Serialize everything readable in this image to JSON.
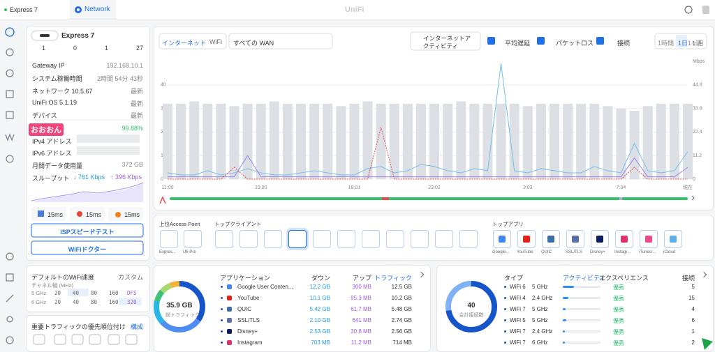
{
  "top_bar": {
    "device_tab": "Express 7",
    "network_tab": "Network",
    "logo": "UniFi"
  },
  "device": {
    "name": "Express 7",
    "counts": [
      1,
      0,
      1,
      27
    ],
    "rows": [
      [
        "Gateway IP",
        "192.168.10.1"
      ],
      [
        "システム稼働時間",
        "2時間 54分 43秒"
      ],
      [
        "ネットワーク 10.5.67",
        "最新"
      ],
      [
        "UniFi OS 5.1.19",
        "最新"
      ],
      [
        "デバイス",
        "最新"
      ]
    ],
    "isp_name": "おおおん",
    "isp_uptime": "99.88%",
    "addresses": [
      "IPv4 アドレス",
      "IPv6 アドレス"
    ],
    "monthly_label": "月間データ使用量",
    "monthly_value": "372 GB",
    "throughput_label": "スループット",
    "down": "↓ 761 Kbps",
    "up": "↑ 396 Kbps",
    "latency": [
      "15ms",
      "15ms",
      "15ms"
    ],
    "buttons": [
      "ISPスピードテスト",
      "WiFiドクター"
    ]
  },
  "wifi_speed": {
    "title": "デフォルトのWiFi速度",
    "mode": "カスタム",
    "channel_label": "チャネル幅 (MHz)",
    "rows": [
      {
        "band": "5 GHz",
        "options": [
          "20",
          "40",
          "80",
          "160",
          "DFS"
        ]
      },
      {
        "band": "6 GHz",
        "options": [
          "20",
          "40",
          "80",
          "160",
          "320"
        ]
      }
    ]
  },
  "priority": {
    "title": "重要トラフィックの優先順位付け",
    "action": "構成"
  },
  "toolbar": {
    "tabs": [
      "インターネット",
      "WiFi"
    ],
    "wan_select": "すべての WAN",
    "ranges": [
      "1時間",
      "1日",
      "1週",
      "1ヶ月"
    ]
  },
  "chart_data": {
    "type": "combo",
    "y2_label": "Mbps",
    "categories": [
      "11:00",
      null,
      null,
      null,
      null,
      null,
      null,
      "15:00",
      null,
      null,
      null,
      null,
      null,
      null,
      "18:01",
      null,
      null,
      null,
      null,
      null,
      "23:02",
      null,
      null,
      null,
      null,
      null,
      null,
      "3:03",
      null,
      null,
      null,
      null,
      null,
      null,
      "7:04",
      null,
      null,
      null,
      null,
      "現在"
    ],
    "ylim": [
      0,
      50
    ],
    "yticks": [
      0,
      10,
      20,
      30,
      40
    ],
    "y2lim": [
      0,
      56
    ],
    "y2ticks": [
      0,
      11.2,
      22.4,
      33.6,
      44.8
    ],
    "grid": true,
    "series": [
      {
        "name": "接続",
        "kind": "bar",
        "color": "#dcdfe4",
        "values": [
          32,
          32,
          33,
          32,
          32,
          31,
          32,
          32,
          33,
          32,
          32,
          32,
          32,
          31,
          32,
          33,
          32,
          32,
          32,
          32,
          32,
          32,
          33,
          32,
          32,
          32,
          32,
          31,
          32,
          32,
          32,
          32,
          32,
          31,
          30,
          29,
          31,
          32,
          32,
          32
        ]
      },
      {
        "name": "インターネットアクティビティ",
        "kind": "line",
        "axis": "y2",
        "color": "#6cc0ea",
        "values": [
          3,
          2,
          2,
          4,
          2,
          3,
          5,
          3,
          2,
          2,
          3,
          4,
          3,
          2,
          2,
          5,
          6,
          3,
          4,
          7,
          6,
          4,
          3,
          5,
          4,
          55,
          4,
          3,
          5,
          4,
          3,
          3,
          6,
          4,
          3,
          17,
          4,
          3,
          4,
          13
        ]
      },
      {
        "name": "平均遅延",
        "kind": "line",
        "color": "#9b7cf0",
        "values": [
          1,
          1,
          1,
          1,
          1,
          1,
          10,
          1,
          1,
          1,
          1,
          1,
          1,
          1,
          1,
          1,
          1,
          1,
          1,
          1,
          1,
          1,
          1,
          1,
          1,
          1,
          1,
          1,
          1,
          1,
          1,
          1,
          1,
          1,
          1,
          9,
          1,
          1,
          1,
          5
        ]
      },
      {
        "name": "パケットロス",
        "kind": "dashed",
        "color": "#e5484d",
        "values": [
          0,
          0,
          0,
          0,
          0,
          5,
          0,
          0,
          0,
          0,
          0,
          0,
          0,
          0,
          0,
          0,
          22,
          0,
          0,
          0,
          0,
          0,
          0,
          0,
          0,
          0,
          0,
          0,
          0,
          0,
          0,
          0,
          0,
          0,
          0,
          5,
          0,
          0,
          0,
          0
        ]
      }
    ]
  },
  "top_lists": {
    "access_points": {
      "title": "上位Access Point",
      "items": [
        "Expres...",
        "U6 Pro"
      ]
    },
    "clients": {
      "title": "トップクライアント"
    },
    "apps": {
      "title": "トップアプリ",
      "items": [
        "Google...",
        "YouTube",
        "QUIC",
        "SSL/TLS",
        "Disney+",
        "Instagr...",
        "iTunes/...",
        "iCloud"
      ]
    }
  },
  "app_traffic": {
    "total": "35.9 GB",
    "total_label": "総トラフィック",
    "headers": [
      "アプリケーション",
      "ダウン",
      "アップ",
      "トラフィック"
    ],
    "rows": [
      [
        "Google User Conten...",
        "12.2 GB",
        "300 MB",
        "12.5 GB"
      ],
      [
        "YouTube",
        "10.1 GB",
        "95.3 MB",
        "10.2 GB"
      ],
      [
        "QUIC",
        "5.42 GB",
        "61.7 MB",
        "5.48 GB"
      ],
      [
        "SSL/TLS",
        "2.10 GB",
        "641 MB",
        "2.74 GB"
      ],
      [
        "Disney+",
        "2.53 GB",
        "30.8 MB",
        "2.56 GB"
      ],
      [
        "Instagram",
        "703 MB",
        "11.2 MB",
        "714 MB"
      ]
    ]
  },
  "connections": {
    "total": 40,
    "total_label": "合計接続数",
    "headers": [
      "タイプ",
      "アクティビティ",
      "エクスペリエンス",
      "接続"
    ],
    "rows": [
      {
        "type": "WiFi 6",
        "band": "5 GHz",
        "activity": 30,
        "experience": "優秀",
        "count": 5
      },
      {
        "type": "WiFi 4",
        "band": "2.4 GHz",
        "activity": 14,
        "experience": "優秀",
        "count": 15
      },
      {
        "type": "WiFi 7",
        "band": "5 GHz",
        "activity": 8,
        "experience": "優秀",
        "count": 4
      },
      {
        "type": "WiFi 5",
        "band": "5 GHz",
        "activity": 10,
        "experience": "優秀",
        "count": 6
      },
      {
        "type": "WiFi 7",
        "band": "2.4 GHz",
        "activity": 6,
        "experience": "優秀",
        "count": 1
      },
      {
        "type": "WiFi 7",
        "band": "6 GHz",
        "activity": 5,
        "experience": "優秀",
        "count": 2
      }
    ]
  }
}
